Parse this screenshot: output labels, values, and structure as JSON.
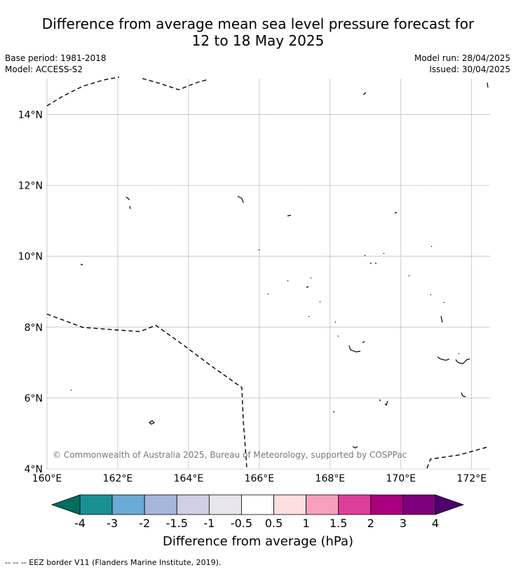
{
  "title": {
    "line1": "Difference from average mean sea level pressure forecast for",
    "line2": "12 to 18 May 2025"
  },
  "meta": {
    "base_period": "Base period: 1981-2018",
    "model": "Model: ACCESS-S2",
    "model_run": "Model run: 28/04/2025",
    "issued": "Issued: 30/04/2025"
  },
  "map": {
    "lon_range": [
      160,
      172.5
    ],
    "lat_range": [
      4,
      15
    ],
    "lon_ticks": [
      {
        "value": 160,
        "label": "160°E"
      },
      {
        "value": 162,
        "label": "162°E"
      },
      {
        "value": 164,
        "label": "164°E"
      },
      {
        "value": 166,
        "label": "166°E"
      },
      {
        "value": 168,
        "label": "168°E"
      },
      {
        "value": 170,
        "label": "170°E"
      },
      {
        "value": 172,
        "label": "172°E"
      }
    ],
    "lat_ticks": [
      {
        "value": 14,
        "label": "14°N"
      },
      {
        "value": 12,
        "label": "12°N"
      },
      {
        "value": 10,
        "label": "10°N"
      },
      {
        "value": 8,
        "label": "8°N"
      },
      {
        "value": 6,
        "label": "6°N"
      },
      {
        "value": 4,
        "label": "4°N"
      }
    ],
    "grid": true,
    "fill_color": "#ffffff",
    "copyright": "© Commonwealth of Australia 2025, Bureau of Meteorology, supported by COSPPac"
  },
  "colorbar": {
    "label": "Difference from average (hPa)",
    "ticks": [
      "-4",
      "-3",
      "-2",
      "-1.5",
      "-1",
      "-0.5",
      "0.5",
      "1",
      "1.5",
      "2",
      "3",
      "4"
    ],
    "min_color": "#006e5e",
    "max_color": "#4b006e",
    "colors": [
      "#1a8f94",
      "#6aaad4",
      "#a5b8dc",
      "#cfcfe6",
      "#e8e6ec",
      "#ffffff",
      "#fedede",
      "#f6a0be",
      "#dc3e9c",
      "#aa0080",
      "#7c007c"
    ]
  },
  "legend_note": "--  --  -- EEZ border V11 (Flanders Marine Institute, 2019)."
}
